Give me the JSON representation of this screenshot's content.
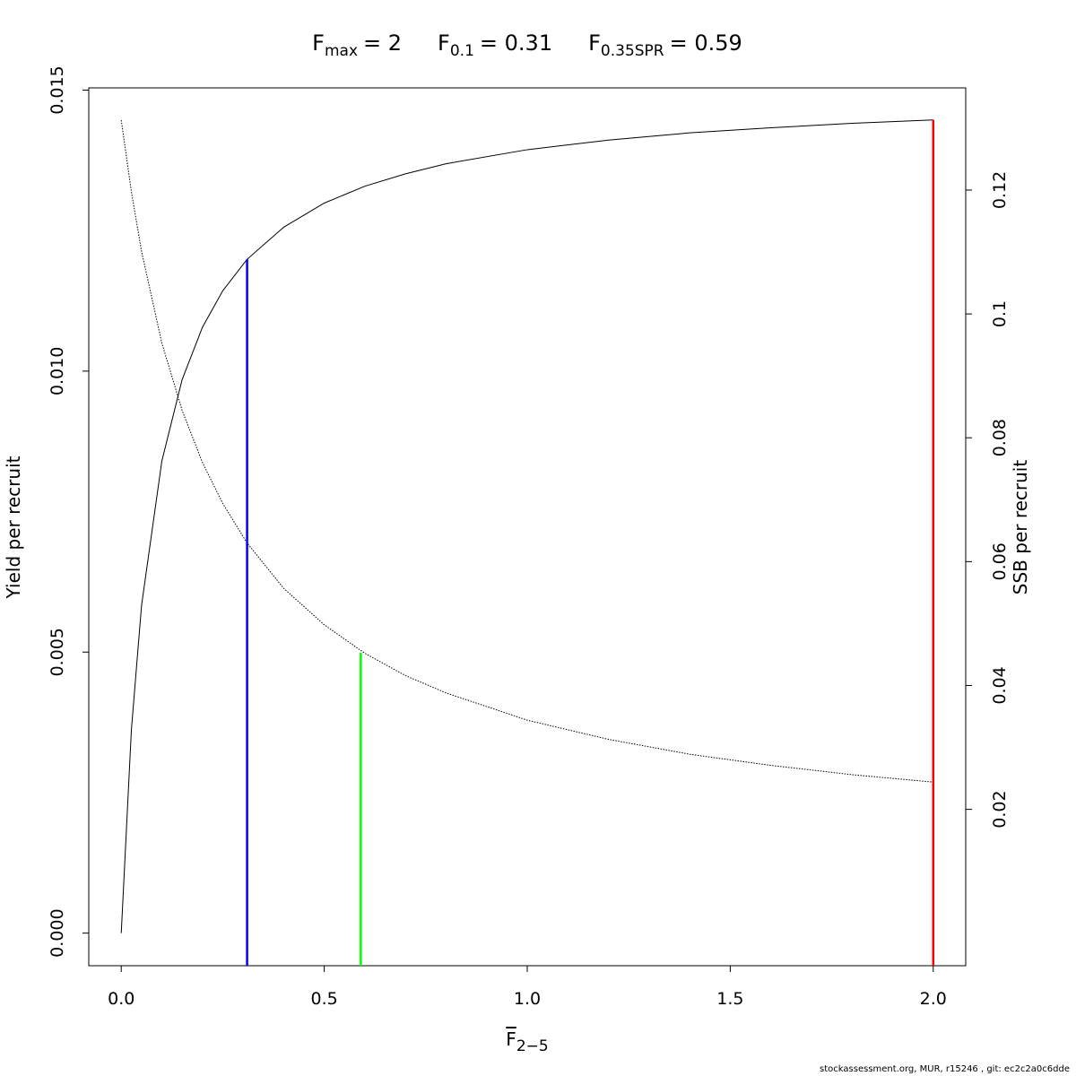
{
  "chart_data": {
    "type": "line",
    "title_parts": [
      {
        "main": "F",
        "sub": "max",
        "rest": "= 2"
      },
      {
        "main": "F",
        "sub": "0.1",
        "rest": "= 0.31"
      },
      {
        "main": "F",
        "sub": "0.35SPR",
        "rest": "= 0.59"
      }
    ],
    "xlabel": {
      "main": "F",
      "sub": "2−5"
    },
    "ylabel": "Yield per recruit",
    "y2label": "SSB per recruit",
    "footer": "stockassessment.org, MUR, r15246 , git: ec2c2a0c6dde",
    "x": [
      0,
      0.025,
      0.05,
      0.1,
      0.15,
      0.2,
      0.25,
      0.31,
      0.4,
      0.5,
      0.6,
      0.7,
      0.8,
      1.0,
      1.2,
      1.4,
      1.6,
      1.8,
      2.0
    ],
    "series": [
      {
        "name": "Yield per recruit",
        "color": "#000000",
        "dash": "solid",
        "axis": "y",
        "values": [
          0,
          0.00362,
          0.00583,
          0.0084,
          0.00985,
          0.01078,
          0.01143,
          0.01199,
          0.01256,
          0.01299,
          0.01329,
          0.01351,
          0.01369,
          0.01394,
          0.01411,
          0.01424,
          0.01433,
          0.01441,
          0.01447
        ]
      },
      {
        "name": "SSB per recruit",
        "color": "#000000",
        "dash": "dotted",
        "axis": "y2",
        "values": [
          0.1313,
          0.1197,
          0.1101,
          0.0953,
          0.0844,
          0.076,
          0.0694,
          0.063,
          0.0557,
          0.0498,
          0.0452,
          0.0416,
          0.0388,
          0.0344,
          0.0313,
          0.0289,
          0.0271,
          0.0256,
          0.0244
        ]
      }
    ],
    "reference_lines": [
      {
        "x": 0.31,
        "y": 0.01199,
        "axis": "y",
        "color": "#0000ff"
      },
      {
        "x": 0.59,
        "y": 0.0453,
        "axis": "y2",
        "color": "#00ff00"
      },
      {
        "x": 2,
        "y": 0.01447,
        "axis": "y",
        "color": "#ff0000"
      }
    ],
    "xlim": [
      -0.08,
      2.08
    ],
    "xticks": [
      {
        "value": 0,
        "label": "0.0"
      },
      {
        "value": 0.5,
        "label": "0.5"
      },
      {
        "value": 1,
        "label": "1.0"
      },
      {
        "value": 1.5,
        "label": "1.5"
      },
      {
        "value": 2,
        "label": "2.0"
      }
    ],
    "ylim": [
      -0.00058,
      0.01504
    ],
    "yticks": [
      {
        "value": 0,
        "label": "0.000"
      },
      {
        "value": 0.005,
        "label": "0.005"
      },
      {
        "value": 0.01,
        "label": "0.010"
      },
      {
        "value": 0.015,
        "label": "0.015"
      }
    ],
    "y2lim": [
      -0.00525,
      0.1365
    ],
    "y2ticks": [
      0.02,
      0.04,
      0.06,
      0.08,
      0.1,
      0.12
    ]
  }
}
